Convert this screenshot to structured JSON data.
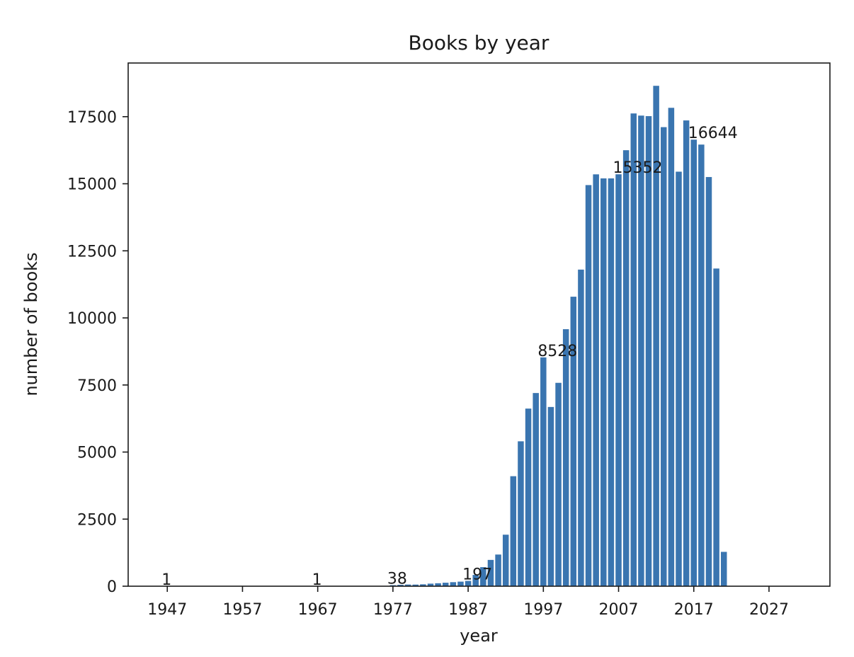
{
  "chart_data": {
    "type": "bar",
    "title": "Books by year",
    "xlabel": "year",
    "ylabel": "number of books",
    "xlim": [
      1941.8,
      2035.1
    ],
    "ylim": [
      0,
      19500
    ],
    "xticks": [
      1947,
      1957,
      1967,
      1977,
      1987,
      1997,
      2007,
      2017,
      2027
    ],
    "yticks": [
      0,
      2500,
      5000,
      7500,
      10000,
      12500,
      15000,
      17500
    ],
    "grid": false,
    "bar_color": "#3a75b0",
    "series": [
      {
        "x": [
          1947,
          1967,
          1977,
          1978,
          1979,
          1980,
          1981,
          1982,
          1983,
          1984,
          1985,
          1986,
          1987,
          1988,
          1989,
          1990,
          1991,
          1992,
          1993,
          1994,
          1995,
          1996,
          1997,
          1998,
          1999,
          2000,
          2001,
          2002,
          2003,
          2004,
          2005,
          2006,
          2007,
          2008,
          2009,
          2010,
          2011,
          2012,
          2013,
          2014,
          2015,
          2016,
          2017,
          2018,
          2019,
          2020,
          2021
        ],
        "values": [
          1,
          1,
          38,
          52,
          62,
          60,
          70,
          95,
          110,
          130,
          150,
          170,
          197,
          420,
          710,
          980,
          1180,
          1920,
          4100,
          5400,
          6620,
          7200,
          8528,
          6680,
          7580,
          9580,
          10790,
          11800,
          14950,
          15350,
          15200,
          15200,
          15352,
          16250,
          17620,
          17540,
          17520,
          18650,
          17110,
          17830,
          15450,
          17360,
          16644,
          16460,
          15250,
          11840,
          1280
        ]
      }
    ],
    "annotations": [
      {
        "x": 1947,
        "y": 1,
        "text": "1"
      },
      {
        "x": 1967,
        "y": 1,
        "text": "1"
      },
      {
        "x": 1977,
        "y": 38,
        "text": "38"
      },
      {
        "x": 1987,
        "y": 197,
        "text": "197"
      },
      {
        "x": 1997,
        "y": 8528,
        "text": "8528"
      },
      {
        "x": 2007,
        "y": 15352,
        "text": "15352"
      },
      {
        "x": 2017,
        "y": 16644,
        "text": "16644"
      }
    ]
  }
}
